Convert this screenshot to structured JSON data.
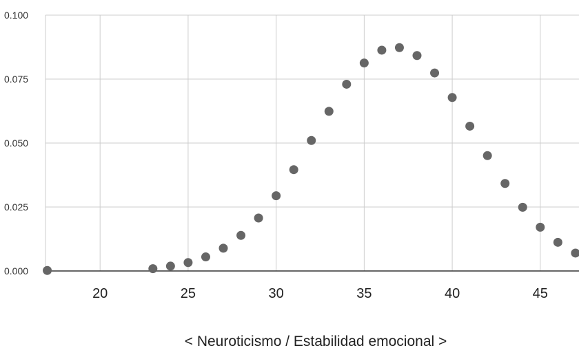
{
  "chart_data": {
    "type": "scatter",
    "title": "",
    "xlabel": "< Neuroticismo / Estabilidad emocional >",
    "ylabel": "",
    "xlim": [
      16.9,
      47.2
    ],
    "ylim": [
      0,
      0.1
    ],
    "x_ticks": [
      20,
      25,
      30,
      35,
      40,
      45
    ],
    "y_ticks": [
      0,
      0.025,
      0.05,
      0.075,
      0.1
    ],
    "x_tick_labels": [
      "20",
      "25",
      "30",
      "35",
      "40",
      "45"
    ],
    "y_tick_labels": [
      "0.000",
      "0.025",
      "0.050",
      "0.075",
      "0.100"
    ],
    "grid": true,
    "color": "#666666",
    "series": [
      {
        "x": [
          17,
          23,
          24,
          25,
          26,
          27,
          28,
          29,
          30,
          31,
          32,
          33,
          34,
          35,
          36,
          37,
          38,
          39,
          40,
          41,
          42,
          43,
          44,
          45,
          46,
          47
        ],
        "y": [
          0.0002,
          0.0009,
          0.0019,
          0.0033,
          0.0055,
          0.0089,
          0.0139,
          0.0207,
          0.0294,
          0.0396,
          0.051,
          0.0624,
          0.073,
          0.0813,
          0.0863,
          0.0873,
          0.0842,
          0.0774,
          0.0678,
          0.0566,
          0.0451,
          0.0342,
          0.0249,
          0.0171,
          0.0112,
          0.007
        ]
      }
    ]
  }
}
